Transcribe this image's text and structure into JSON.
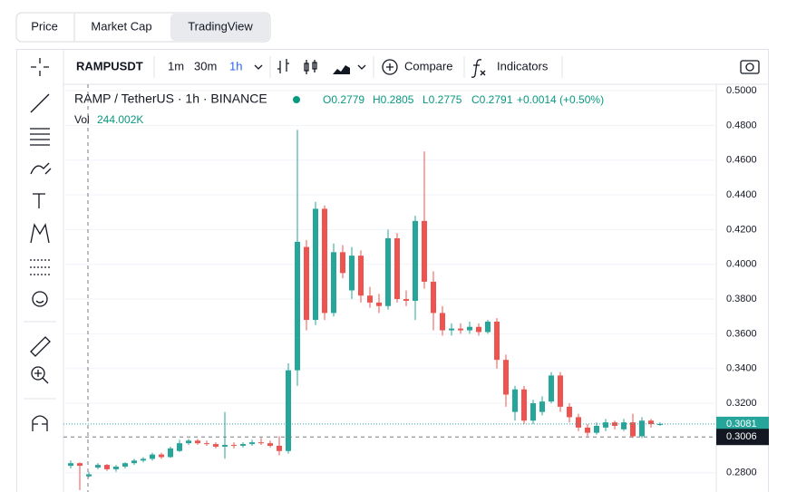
{
  "tabs": [
    "Price",
    "Market Cap",
    "TradingView"
  ],
  "toolbar": {
    "symbol": "RAMPUSDT",
    "intervals": [
      "1m",
      "30m",
      "1h"
    ],
    "compare": "Compare",
    "indicators": "Indicators"
  },
  "legend": {
    "title": "RAMP / TetherUS · 1h · BINANCE",
    "ohlc": [
      "O0.2779",
      "H0.2805",
      "L0.2775",
      "C0.2791"
    ],
    "change": "+0.0014 (+0.50%)",
    "volume_label": "Vol",
    "volume": "244.002K"
  },
  "chart_data": {
    "type": "candlestick",
    "open": [
      0.284,
      0.2855,
      0.2779,
      0.283,
      0.2845,
      0.282,
      0.2835,
      0.2855,
      0.287,
      0.288,
      0.2905,
      0.289,
      0.2925,
      0.297,
      0.2985,
      0.297,
      0.2965,
      0.295,
      0.296,
      0.2955,
      0.2965,
      0.2975,
      0.297,
      0.2955,
      0.2925,
      0.339,
      0.41,
      0.368,
      0.432,
      0.372,
      0.407,
      0.385,
      0.405,
      0.382,
      0.378,
      0.376,
      0.415,
      0.38,
      0.379,
      0.425,
      0.39,
      0.372,
      0.362,
      0.363,
      0.362,
      0.364,
      0.361,
      0.367,
      0.345,
      0.315,
      0.328,
      0.31,
      0.315,
      0.321,
      0.336,
      0.318,
      0.312,
      0.306,
      0.303,
      0.306,
      0.309,
      0.305,
      0.309,
      0.301,
      0.31,
      0.3075
    ],
    "high": [
      0.287,
      0.286,
      0.2805,
      0.2855,
      0.285,
      0.2845,
      0.286,
      0.288,
      0.289,
      0.2915,
      0.2915,
      0.295,
      0.299,
      0.2995,
      0.2995,
      0.2985,
      0.2975,
      0.315,
      0.2975,
      0.2975,
      0.299,
      0.3,
      0.2985,
      0.301,
      0.343,
      0.4775,
      0.414,
      0.436,
      0.434,
      0.412,
      0.411,
      0.41,
      0.408,
      0.387,
      0.383,
      0.42,
      0.418,
      0.385,
      0.428,
      0.465,
      0.396,
      0.376,
      0.366,
      0.366,
      0.367,
      0.366,
      0.368,
      0.369,
      0.348,
      0.33,
      0.33,
      0.322,
      0.324,
      0.338,
      0.338,
      0.32,
      0.314,
      0.308,
      0.309,
      0.311,
      0.31,
      0.311,
      0.314,
      0.312,
      0.311,
      0.309
    ],
    "low": [
      0.2825,
      0.27,
      0.2775,
      0.282,
      0.281,
      0.2805,
      0.2825,
      0.2845,
      0.286,
      0.287,
      0.288,
      0.2885,
      0.292,
      0.296,
      0.296,
      0.2955,
      0.294,
      0.288,
      0.294,
      0.2945,
      0.2955,
      0.296,
      0.2945,
      0.29,
      0.291,
      0.33,
      0.362,
      0.365,
      0.368,
      0.37,
      0.392,
      0.38,
      0.378,
      0.375,
      0.372,
      0.374,
      0.378,
      0.376,
      0.368,
      0.386,
      0.362,
      0.359,
      0.359,
      0.36,
      0.36,
      0.359,
      0.36,
      0.34,
      0.318,
      0.31,
      0.308,
      0.308,
      0.313,
      0.32,
      0.315,
      0.309,
      0.304,
      0.301,
      0.302,
      0.304,
      0.305,
      0.304,
      0.3,
      0.3,
      0.306,
      0.307
    ],
    "close": [
      0.2855,
      0.284,
      0.2791,
      0.2845,
      0.282,
      0.2835,
      0.2855,
      0.287,
      0.288,
      0.2905,
      0.289,
      0.294,
      0.297,
      0.2985,
      0.297,
      0.2965,
      0.295,
      0.296,
      0.2955,
      0.2965,
      0.2975,
      0.297,
      0.2955,
      0.2925,
      0.339,
      0.413,
      0.368,
      0.432,
      0.372,
      0.407,
      0.395,
      0.405,
      0.382,
      0.378,
      0.376,
      0.415,
      0.38,
      0.379,
      0.425,
      0.39,
      0.372,
      0.362,
      0.363,
      0.362,
      0.364,
      0.361,
      0.367,
      0.345,
      0.325,
      0.328,
      0.31,
      0.32,
      0.321,
      0.336,
      0.318,
      0.312,
      0.306,
      0.303,
      0.307,
      0.309,
      0.307,
      0.309,
      0.301,
      0.31,
      0.308,
      0.3081
    ],
    "ylim": [
      0.2689,
      0.5037
    ],
    "yticks": [
      {
        "value": 0.28,
        "label": "0.2800"
      },
      {
        "value": 0.32,
        "label": "0.3200"
      },
      {
        "value": 0.34,
        "label": "0.3400"
      },
      {
        "value": 0.36,
        "label": "0.3600"
      },
      {
        "value": 0.38,
        "label": "0.3800"
      },
      {
        "value": 0.4,
        "label": "0.4000"
      },
      {
        "value": 0.42,
        "label": "0.4200"
      },
      {
        "value": 0.44,
        "label": "0.4400"
      },
      {
        "value": 0.46,
        "label": "0.4600"
      },
      {
        "value": 0.48,
        "label": "0.4800"
      },
      {
        "value": 0.5,
        "label": "0.5000"
      }
    ],
    "grid": true,
    "up_color": "#26a69a",
    "down_color": "#ef5350",
    "last_price": 0.3081,
    "crosshair_price": 0.3006
  }
}
